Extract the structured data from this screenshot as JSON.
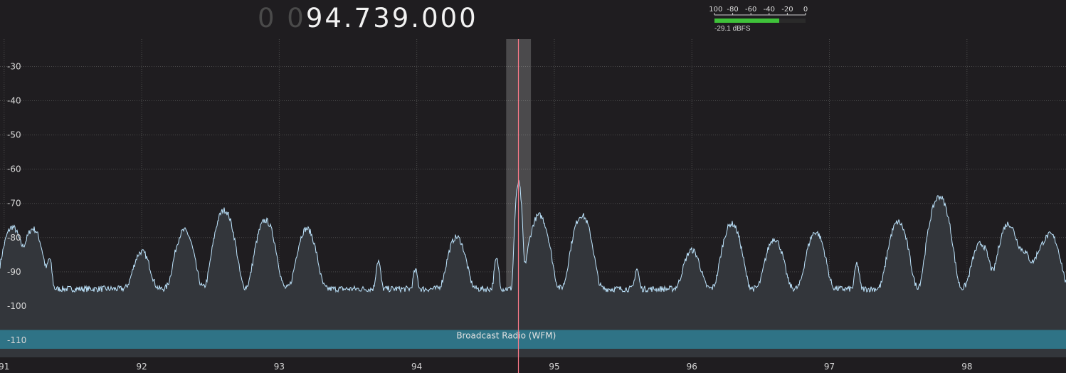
{
  "frequency": {
    "dim_prefix": "0 0",
    "value": "94.739.000"
  },
  "signal_meter": {
    "scale_labels": [
      "-100",
      "-80",
      "-60",
      "-40",
      "-20",
      "0"
    ],
    "scale_values": [
      -100,
      -80,
      -60,
      -40,
      -20,
      0
    ],
    "level_dbfs": -29.1,
    "readout": "-29.1 dBFS",
    "bar_color": "#3fc23a"
  },
  "chart_data": {
    "type": "line",
    "title": "",
    "xlabel": "",
    "ylabel": "",
    "x_unit": "MHz",
    "y_unit": "dB",
    "xlim": [
      90.97,
      98.72
    ],
    "ylim": [
      -115,
      -22
    ],
    "x_ticks": [
      91,
      92,
      93,
      94,
      95,
      96,
      97,
      98
    ],
    "x_tick_labels": [
      "91",
      "92",
      "93",
      "94",
      "95",
      "96",
      "97",
      "98"
    ],
    "y_ticks": [
      -30,
      -40,
      -50,
      -60,
      -70,
      -80,
      -90,
      -100,
      -110
    ],
    "y_tick_labels": [
      "-30",
      "-40",
      "-50",
      "-60",
      "-70",
      "-80",
      "-90",
      "-100",
      "-110"
    ],
    "grid": true,
    "noise_floor_db": -95,
    "peaks": [
      {
        "freq": 91.06,
        "db": -77
      },
      {
        "freq": 91.21,
        "db": -77.5
      },
      {
        "freq": 91.33,
        "db": -87
      },
      {
        "freq": 92.0,
        "db": -84.5
      },
      {
        "freq": 92.31,
        "db": -78
      },
      {
        "freq": 92.6,
        "db": -72
      },
      {
        "freq": 92.9,
        "db": -75
      },
      {
        "freq": 93.2,
        "db": -77.5
      },
      {
        "freq": 93.72,
        "db": -87.5
      },
      {
        "freq": 93.99,
        "db": -91
      },
      {
        "freq": 94.29,
        "db": -80
      },
      {
        "freq": 94.58,
        "db": -87
      },
      {
        "freq": 94.74,
        "db": -64
      },
      {
        "freq": 94.89,
        "db": -73.5
      },
      {
        "freq": 95.2,
        "db": -73.5
      },
      {
        "freq": 95.6,
        "db": -90.5
      },
      {
        "freq": 96.0,
        "db": -84
      },
      {
        "freq": 96.29,
        "db": -76
      },
      {
        "freq": 96.6,
        "db": -80.5
      },
      {
        "freq": 96.9,
        "db": -78.5
      },
      {
        "freq": 97.2,
        "db": -88.5
      },
      {
        "freq": 97.5,
        "db": -75.5
      },
      {
        "freq": 97.8,
        "db": -68
      },
      {
        "freq": 98.1,
        "db": -82
      },
      {
        "freq": 98.3,
        "db": -76
      },
      {
        "freq": 98.41,
        "db": -84.5
      },
      {
        "freq": 98.54,
        "db": -84.5
      },
      {
        "freq": 98.61,
        "db": -79.5
      }
    ],
    "tuned_freq": 94.739,
    "filter_band": [
      94.65,
      94.83
    ],
    "marker_color": "#ff7a8a",
    "trace_color": "#bfe6ff",
    "fill_color": "#33363b",
    "band_plan": {
      "label": "Broadcast Radio (WFM)",
      "range": [
        87.5,
        108
      ],
      "color": "#2f7386"
    }
  }
}
